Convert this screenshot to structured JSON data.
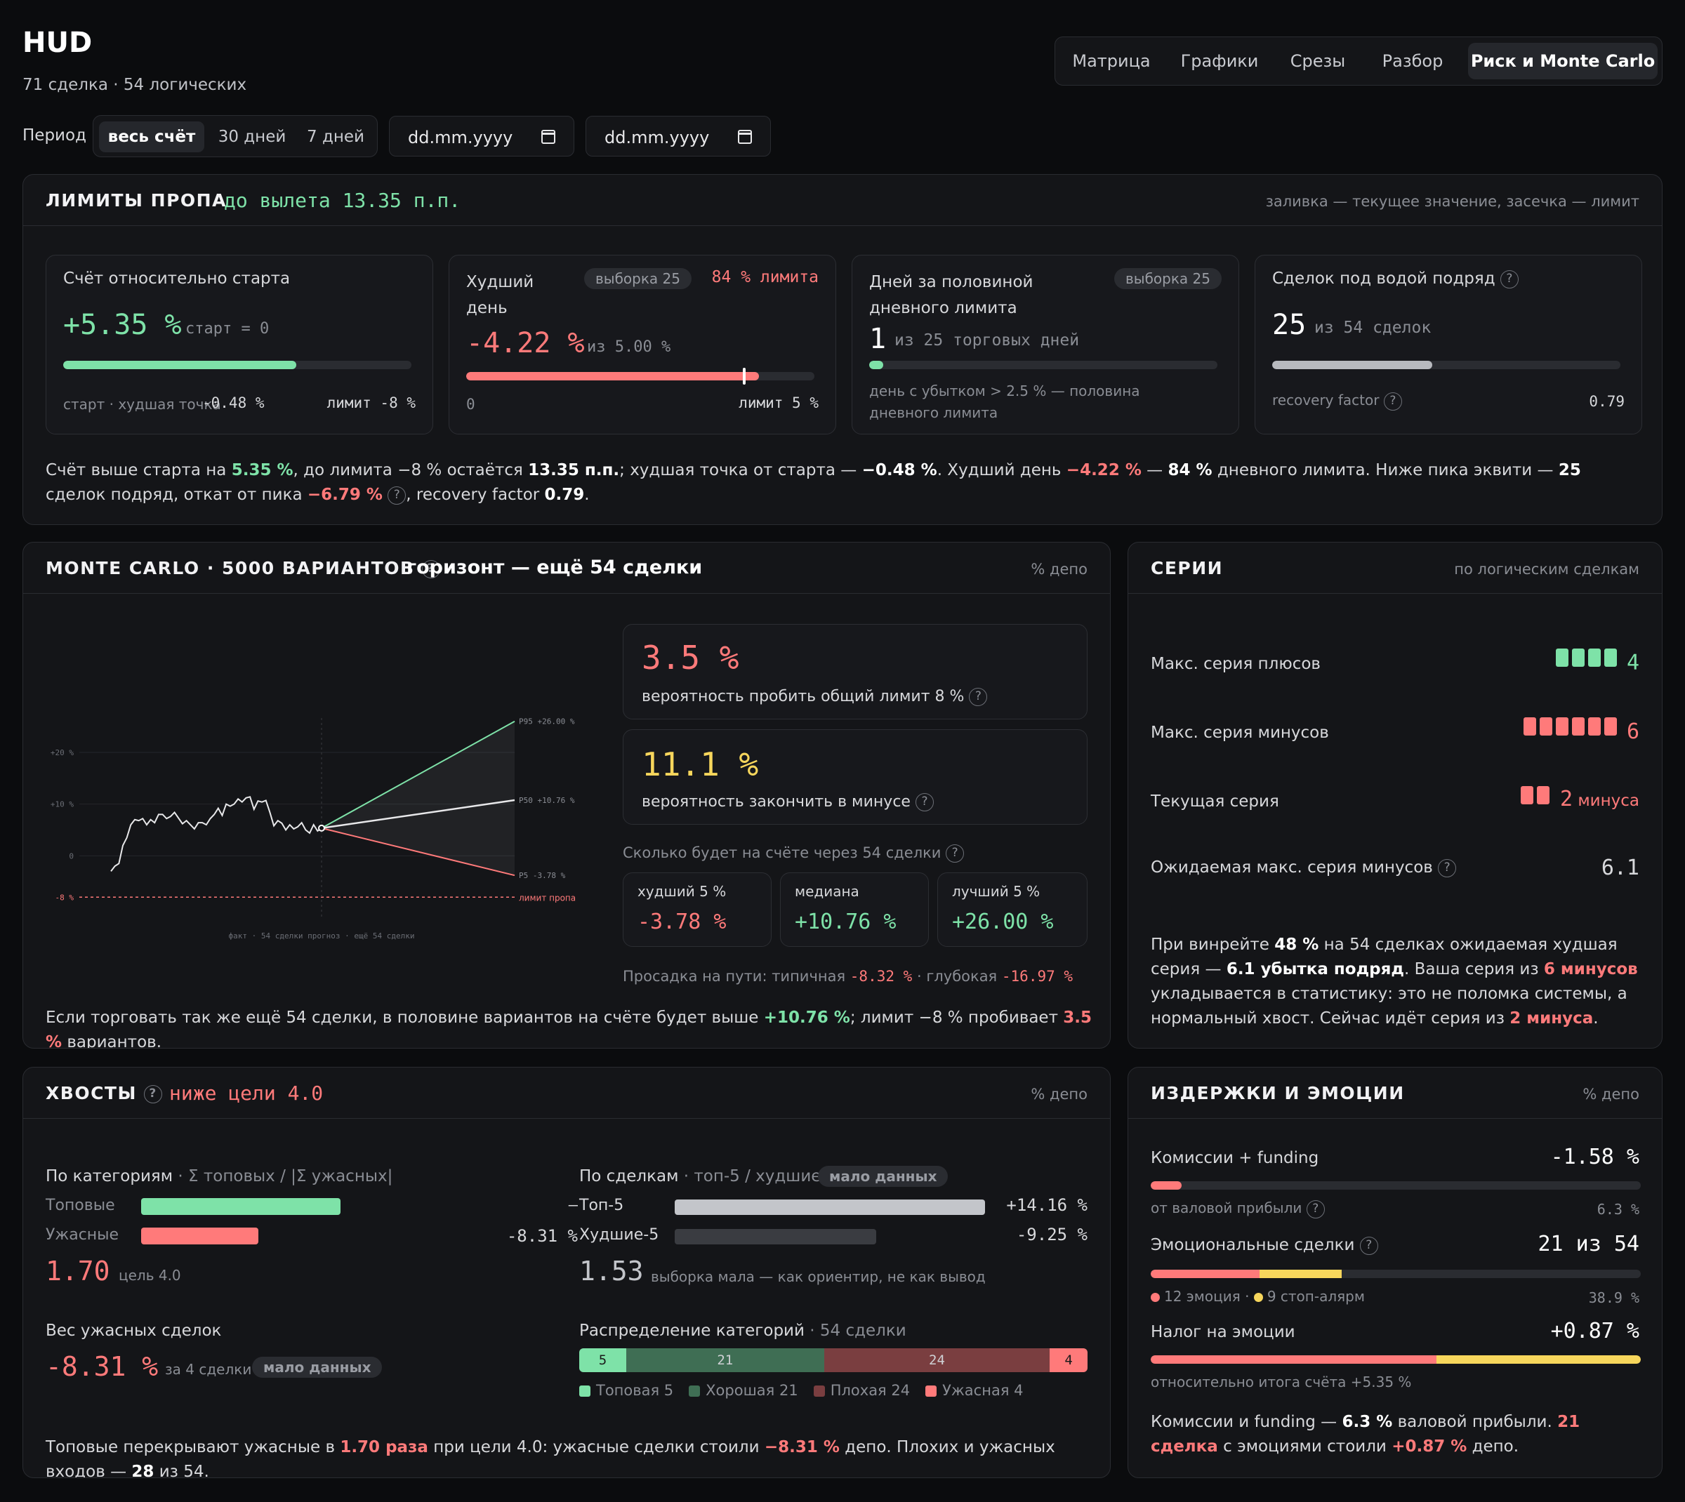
{
  "header": {
    "title": "HUD",
    "subtitle": "71 сделка · 54 логических"
  },
  "tabs": [
    "Матрица",
    "Графики",
    "Срезы",
    "Разбор",
    "Риск и Monte Carlo"
  ],
  "period": {
    "label": "Период",
    "options": [
      "весь счёт",
      "30 дней",
      "7 дней"
    ],
    "date_from": "dd.mm.yyyy",
    "date_to": "dd.mm.yyyy"
  },
  "limits": {
    "title": "ЛИМИТЫ ПРОПА",
    "status": "до вылета 13.35 п.п.",
    "hint": "заливка — текущее значение, засечка — лимит",
    "account": {
      "label": "Счёт относительно старта",
      "value": "+5.35 %",
      "unit": "старт = 0",
      "progress": 0.67,
      "foot_left": "старт · худшая точка",
      "foot_left_val": "-0.48 %",
      "foot_right": "лимит -8 %"
    },
    "worst_day": {
      "label": "Худший день",
      "pill": "выборка 25",
      "badge": "84 % лимита",
      "value": "-4.22 %",
      "unit": "из 5.00 %",
      "progress": 0.84,
      "foot_left": "0",
      "foot_right": "лимит 5 %"
    },
    "half_days": {
      "label": "Дней за половиной дневного лимита",
      "pill": "выборка 25",
      "value": "1",
      "unit": "из 25 торговых дней",
      "progress": 0.04,
      "foot": "день с убытком > 2.5 % — половина дневного лимита"
    },
    "underwater": {
      "label": "Сделок под водой подряд",
      "value": "25",
      "unit": "из 54 сделок",
      "progress": 0.46,
      "foot_left": "recovery factor",
      "foot_right": "0.79"
    },
    "note": {
      "t1": "Счёт выше старта на ",
      "v1": "5.35 %",
      "t2": ", до лимита −8 % остаётся ",
      "v2": "13.35 п.п.",
      "t3": "; худшая точка от старта — ",
      "v3": "−0.48 %",
      "t4": ". Худший день ",
      "v4": "−4.22 %",
      "t5": " — ",
      "v5": "84 %",
      "t6": " дневного лимита. Ниже пика эквити — ",
      "v6": "25",
      "t7": " сделок подряд, откат от пика ",
      "v7": "−6.79 %",
      "t8": ", recovery factor ",
      "v8": "0.79",
      "t9": "."
    }
  },
  "monte_carlo": {
    "title": "MONTE CARLO · 5000 ВАРИАНТОВ",
    "horizon": "горизонт — ещё 54 сделки",
    "unit": "% депо",
    "chart_data": {
      "type": "line",
      "y_ticks": [
        "+20 %",
        "+10 %",
        "0",
        "-8 %"
      ],
      "p95_label": "P95 +26.00 %",
      "p50_label": "P50 +10.76 %",
      "p5_label": "P5 -3.78 %",
      "limit_label": "лимит пропа",
      "x_label": "факт · 54 сделки   прогноз · ещё 54 сделки",
      "p95": 26.0,
      "p50": 10.76,
      "p5": -3.78,
      "limit": -8,
      "fact": [
        -3,
        -2,
        -1.5,
        2,
        3.5,
        6,
        7,
        6.8,
        7.2,
        6,
        7,
        6.4,
        8,
        8,
        7.2,
        7.6,
        8.4,
        7.3,
        6.2,
        6.8,
        6,
        5.2,
        6.4,
        6.4,
        6,
        7.2,
        8,
        9.2,
        7.8,
        10,
        9.6,
        10,
        11,
        10.4,
        11.2,
        11.4,
        9,
        10.6,
        10.4,
        10.7,
        8.4,
        5.8,
        6.8,
        6.3,
        5,
        6,
        5.2,
        5.6,
        6.4,
        5,
        4.4,
        6,
        4.8,
        5.35
      ]
    },
    "prob_limit": {
      "value": "3.5 %",
      "label": "вероятность пробить общий лимит 8 %"
    },
    "prob_minus": {
      "value": "11.1 %",
      "label": "вероятность закончить в минусе"
    },
    "after": "Сколько будет на счёте через 54 сделки",
    "worst5": {
      "label": "худший 5 %",
      "value": "-3.78 %"
    },
    "median": {
      "label": "медиана",
      "value": "+10.76 %"
    },
    "best5": {
      "label": "лучший 5 %",
      "value": "+26.00 %"
    },
    "dd": {
      "t1": "Просадка на пути: типичная",
      "v1": "-8.32 %",
      "t2": " · глубокая",
      "v2": "-16.97 %"
    },
    "note": {
      "t1": "Если торговать так же ещё 54 сделки, в половине вариантов на счёте будет выше ",
      "v1": "+10.76 %",
      "t2": "; лимит −8 % пробивает ",
      "v2": "3.5 %",
      "t3": " вариантов."
    }
  },
  "series": {
    "title": "СЕРИИ",
    "hint": "по логическим сделкам",
    "rows": [
      {
        "label": "Макс. серия плюсов",
        "value": "4"
      },
      {
        "label": "Макс. серия минусов",
        "value": "6"
      },
      {
        "label": "Текущая серия",
        "value": "2",
        "suffix": "минуса"
      },
      {
        "label": "Ожидаемая макс. серия минусов",
        "value": "6.1"
      }
    ],
    "note": {
      "t1": "При винрейте ",
      "v1": "48 %",
      "t2": " на 54 сделках ожидаемая худшая серия — ",
      "v2": "6.1 убытка подряд",
      "t3": ". Ваша серия из ",
      "v3": "6 минусов",
      "t4": " укладывается в статистику: это не поломка системы, а нормальный хвост. Сейчас идёт серия из ",
      "v4": "2 минуса",
      "t5": "."
    }
  },
  "tails": {
    "title": "ХВОСТЫ",
    "status": "ниже цели 4.0",
    "unit": "% депо",
    "cat_title": "По категориям",
    "cat_sub": " · Σ топовых / |Σ ужасных|",
    "top_label": "Топовые",
    "top_value": "—",
    "top_bar": 0.645,
    "bad_label": "Ужасные",
    "bad_value": "-8.31 %",
    "bad_bar": 0.38,
    "ratio": "1.70",
    "goal": "цель 4.0",
    "weight_title": "Вес ужасных сделок",
    "weight_value": "-8.31 %",
    "weight_unit": "за 4 сделки",
    "weight_pill": "мало данных",
    "deal_title": "По сделкам",
    "deal_sub": " · топ-5 / худшие-5",
    "deal_pill": "мало данных",
    "top5_label": "Топ-5",
    "top5_value": "+14.16 %",
    "top5_bar": 1.0,
    "worst5_label": "Худшие-5",
    "worst5_value": "-9.25 %",
    "worst5_bar": 0.65,
    "deal_ratio": "1.53",
    "deal_ratio_note": "выборка мала — как ориентир, не как вывод",
    "dist_title": "Распределение категорий",
    "dist_sub": " · 54 сделки",
    "dist": [
      {
        "name": "Топовая",
        "count": 5,
        "label": "5",
        "legend": "Топовая 5",
        "color": "#7ee2a8"
      },
      {
        "name": "Хорошая",
        "count": 21,
        "label": "21",
        "legend": "Хорошая 21",
        "color": "#3f6e54"
      },
      {
        "name": "Плохая",
        "count": 24,
        "label": "24",
        "legend": "Плохая 24",
        "color": "#7a3e40"
      },
      {
        "name": "Ужасная",
        "count": 4,
        "label": "4",
        "legend": "Ужасная 4",
        "color": "#ff7a7a"
      }
    ],
    "note": {
      "t1": "Топовые перекрывают ужасные в ",
      "v1": "1.70 раза",
      "t2": " при цели 4.0: ужасные сделки стоили ",
      "v2": "−8.31 %",
      "t3": " депо. Плохих и ужасных входов — ",
      "v3": "28",
      "t4": " из 54."
    }
  },
  "costs": {
    "title": "ИЗДЕРЖКИ И ЭМОЦИИ",
    "unit": "% депо",
    "fees": {
      "label": "Комиссии + funding",
      "value": "-1.58 %",
      "sub": "от валовой прибыли",
      "sub_val": "6.3 %",
      "bar": 0.063
    },
    "emo": {
      "label": "Эмоциональные сделки",
      "value": "21 из 54",
      "leg1": "12 эмоция",
      "leg2": "9 стоп-алярм",
      "pct": "38.9 %",
      "bar1": 0.222,
      "bar2": 0.167
    },
    "tax": {
      "label": "Налог на эмоции",
      "value": "+0.87 %",
      "sub": "относительно итога счёта +5.35 %",
      "bar1": 0.583,
      "bar2": 0.417
    },
    "note": {
      "t1": "Комиссии и funding — ",
      "v1": "6.3 %",
      "t2": " валовой прибыли. ",
      "v2": "21 сделка",
      "t3": " с эмоциями стоили ",
      "v3": "+0.87 %",
      "t4": " депо."
    }
  },
  "colors": {
    "green": "#7ee2a8",
    "red": "#ff7a7a",
    "yellow": "#f7d65c",
    "grey": "#8a8d94"
  }
}
